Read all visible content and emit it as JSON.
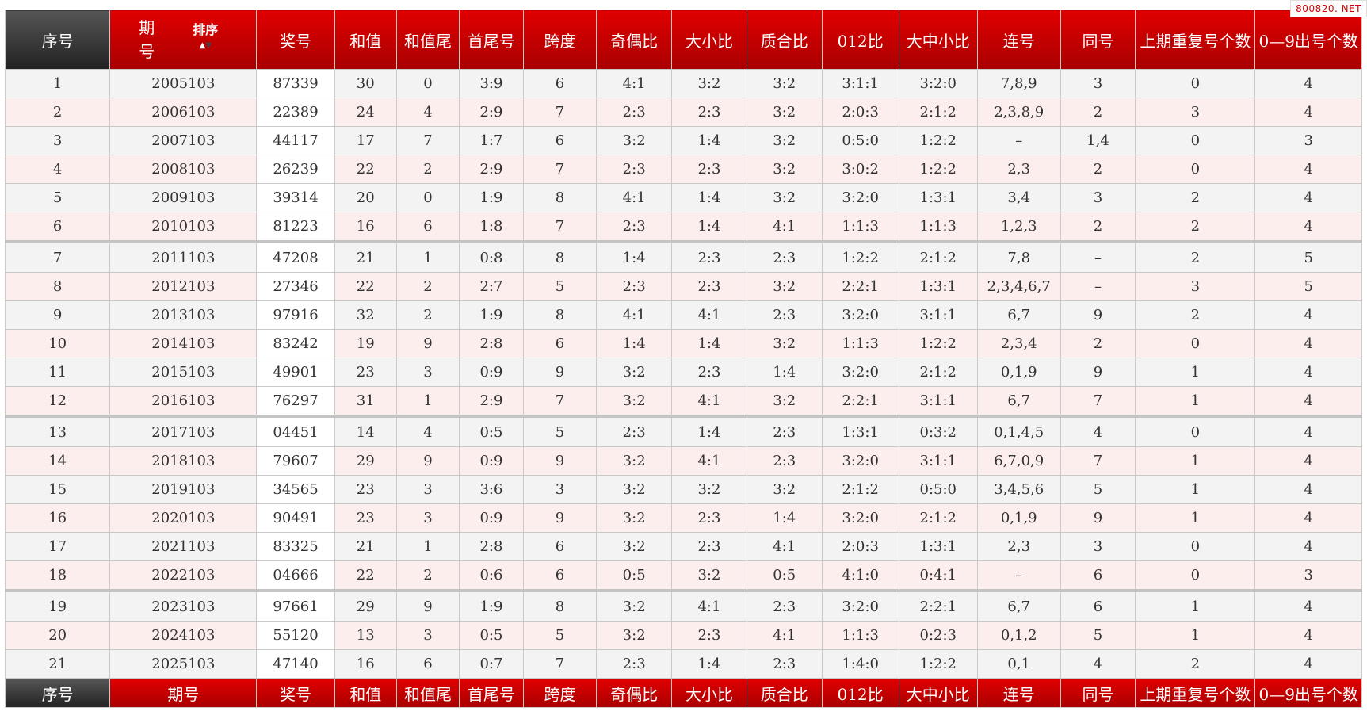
{
  "watermark": "800820. NET",
  "header": {
    "index": "序号",
    "period_line1": "期",
    "period_line2": "号",
    "sort_label": "排序",
    "number": "奖号",
    "sum": "和值",
    "sum_tail": "和值尾",
    "first_last": "首尾号",
    "span": "跨度",
    "odd_even": "奇偶比",
    "big_small": "大小比",
    "prime_comp": "质合比",
    "ratio_012": "012比",
    "big_mid_small": "大中小比",
    "consecutive": "连号",
    "same": "同号",
    "repeat_prev": "上期重复号个数",
    "digits_0_9": "0—9出号个数"
  },
  "footer": {
    "index": "序号",
    "period": "期号",
    "number": "奖号",
    "sum": "和值",
    "sum_tail": "和值尾",
    "first_last": "首尾号",
    "span": "跨度",
    "odd_even": "奇偶比",
    "big_small": "大小比",
    "prime_comp": "质合比",
    "ratio_012": "012比",
    "big_mid_small": "大中小比",
    "consecutive": "连号",
    "same": "同号",
    "repeat_prev": "上期重复号个数",
    "digits_0_9": "0—9出号个数"
  },
  "rows": [
    [
      "1",
      "2005103",
      "87339",
      "30",
      "0",
      "3:9",
      "6",
      "4:1",
      "3:2",
      "3:2",
      "3:1:1",
      "3:2:0",
      "7,8,9",
      "3",
      "0",
      "4"
    ],
    [
      "2",
      "2006103",
      "22389",
      "24",
      "4",
      "2:9",
      "7",
      "2:3",
      "2:3",
      "3:2",
      "2:0:3",
      "2:1:2",
      "2,3,8,9",
      "2",
      "3",
      "4"
    ],
    [
      "3",
      "2007103",
      "44117",
      "17",
      "7",
      "1:7",
      "6",
      "3:2",
      "1:4",
      "3:2",
      "0:5:0",
      "1:2:2",
      "–",
      "1,4",
      "0",
      "3"
    ],
    [
      "4",
      "2008103",
      "26239",
      "22",
      "2",
      "2:9",
      "7",
      "2:3",
      "2:3",
      "3:2",
      "3:0:2",
      "1:2:2",
      "2,3",
      "2",
      "0",
      "4"
    ],
    [
      "5",
      "2009103",
      "39314",
      "20",
      "0",
      "1:9",
      "8",
      "4:1",
      "1:4",
      "3:2",
      "3:2:0",
      "1:3:1",
      "3,4",
      "3",
      "2",
      "4"
    ],
    [
      "6",
      "2010103",
      "81223",
      "16",
      "6",
      "1:8",
      "7",
      "2:3",
      "1:4",
      "4:1",
      "1:1:3",
      "1:1:3",
      "1,2,3",
      "2",
      "2",
      "4"
    ],
    [
      "7",
      "2011103",
      "47208",
      "21",
      "1",
      "0:8",
      "8",
      "1:4",
      "2:3",
      "2:3",
      "1:2:2",
      "2:1:2",
      "7,8",
      "–",
      "2",
      "5"
    ],
    [
      "8",
      "2012103",
      "27346",
      "22",
      "2",
      "2:7",
      "5",
      "2:3",
      "2:3",
      "3:2",
      "2:2:1",
      "1:3:1",
      "2,3,4,6,7",
      "–",
      "3",
      "5"
    ],
    [
      "9",
      "2013103",
      "97916",
      "32",
      "2",
      "1:9",
      "8",
      "4:1",
      "4:1",
      "2:3",
      "3:2:0",
      "3:1:1",
      "6,7",
      "9",
      "2",
      "4"
    ],
    [
      "10",
      "2014103",
      "83242",
      "19",
      "9",
      "2:8",
      "6",
      "1:4",
      "1:4",
      "3:2",
      "1:1:3",
      "1:2:2",
      "2,3,4",
      "2",
      "0",
      "4"
    ],
    [
      "11",
      "2015103",
      "49901",
      "23",
      "3",
      "0:9",
      "9",
      "3:2",
      "2:3",
      "1:4",
      "3:2:0",
      "2:1:2",
      "0,1,9",
      "9",
      "1",
      "4"
    ],
    [
      "12",
      "2016103",
      "76297",
      "31",
      "1",
      "2:9",
      "7",
      "3:2",
      "4:1",
      "3:2",
      "2:2:1",
      "3:1:1",
      "6,7",
      "7",
      "1",
      "4"
    ],
    [
      "13",
      "2017103",
      "04451",
      "14",
      "4",
      "0:5",
      "5",
      "2:3",
      "1:4",
      "2:3",
      "1:3:1",
      "0:3:2",
      "0,1,4,5",
      "4",
      "0",
      "4"
    ],
    [
      "14",
      "2018103",
      "79607",
      "29",
      "9",
      "0:9",
      "9",
      "3:2",
      "4:1",
      "2:3",
      "3:2:0",
      "3:1:1",
      "6,7,0,9",
      "7",
      "1",
      "4"
    ],
    [
      "15",
      "2019103",
      "34565",
      "23",
      "3",
      "3:6",
      "3",
      "3:2",
      "3:2",
      "3:2",
      "2:1:2",
      "0:5:0",
      "3,4,5,6",
      "5",
      "1",
      "4"
    ],
    [
      "16",
      "2020103",
      "90491",
      "23",
      "3",
      "0:9",
      "9",
      "3:2",
      "2:3",
      "1:4",
      "3:2:0",
      "2:1:2",
      "0,1,9",
      "9",
      "1",
      "4"
    ],
    [
      "17",
      "2021103",
      "83325",
      "21",
      "1",
      "2:8",
      "6",
      "3:2",
      "2:3",
      "4:1",
      "2:0:3",
      "1:3:1",
      "2,3",
      "3",
      "0",
      "4"
    ],
    [
      "18",
      "2022103",
      "04666",
      "22",
      "2",
      "0:6",
      "6",
      "0:5",
      "3:2",
      "0:5",
      "4:1:0",
      "0:4:1",
      "–",
      "6",
      "0",
      "3"
    ],
    [
      "19",
      "2023103",
      "97661",
      "29",
      "9",
      "1:9",
      "8",
      "3:2",
      "4:1",
      "2:3",
      "3:2:0",
      "2:2:1",
      "6,7",
      "6",
      "1",
      "4"
    ],
    [
      "20",
      "2024103",
      "55120",
      "13",
      "3",
      "0:5",
      "5",
      "3:2",
      "2:3",
      "4:1",
      "1:1:3",
      "0:2:3",
      "0,1,2",
      "5",
      "1",
      "4"
    ],
    [
      "21",
      "2025103",
      "47140",
      "16",
      "6",
      "0:7",
      "7",
      "2:3",
      "1:4",
      "2:3",
      "1:4:0",
      "1:2:2",
      "0,1",
      "4",
      "2",
      "4"
    ]
  ]
}
